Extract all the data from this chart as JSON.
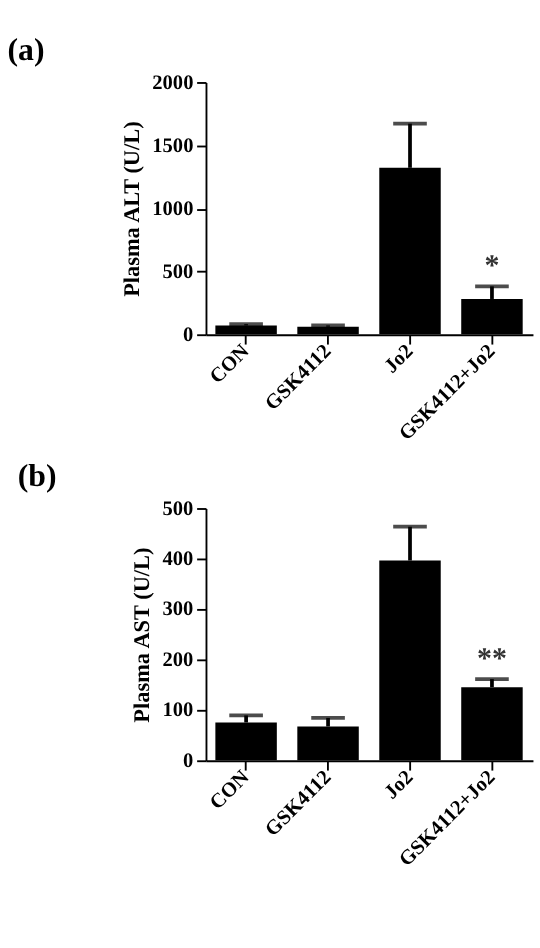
{
  "chart_data": [
    {
      "type": "bar",
      "title": "(a)",
      "ylabel": "Plasma ALT (U/L)",
      "categories": [
        "CON",
        "GSK4112",
        "Jo2",
        "GSK4112+Jo2"
      ],
      "values": [
        70,
        60,
        1320,
        280
      ],
      "errors": [
        [
          70,
          80
        ],
        [
          60,
          70
        ],
        [
          1320,
          1670
        ],
        [
          280,
          380
        ]
      ],
      "color": "#000000",
      "ylim": [
        0,
        2000
      ],
      "yticks": [
        0,
        500,
        1000,
        1500,
        2000
      ],
      "grid": false,
      "annotations": [
        {
          "text": "*",
          "x": "GSK4112+Jo2",
          "y": 380
        }
      ]
    },
    {
      "type": "bar",
      "title": "(b)",
      "ylabel": "Plasma AST (U/L)",
      "categories": [
        "CON",
        "GSK4112",
        "Jo2",
        "GSK4112+Jo2"
      ],
      "values": [
        75,
        67,
        396,
        145
      ],
      "errors": [
        [
          75,
          89
        ],
        [
          67,
          84
        ],
        [
          396,
          463
        ],
        [
          145,
          161
        ]
      ],
      "color": "#000000",
      "ylim": [
        0,
        500
      ],
      "yticks": [
        0,
        100,
        200,
        300,
        400,
        500
      ],
      "grid": false,
      "annotations": [
        {
          "text": "**",
          "x": "GSK4112+Jo2",
          "y": 161
        }
      ]
    }
  ]
}
